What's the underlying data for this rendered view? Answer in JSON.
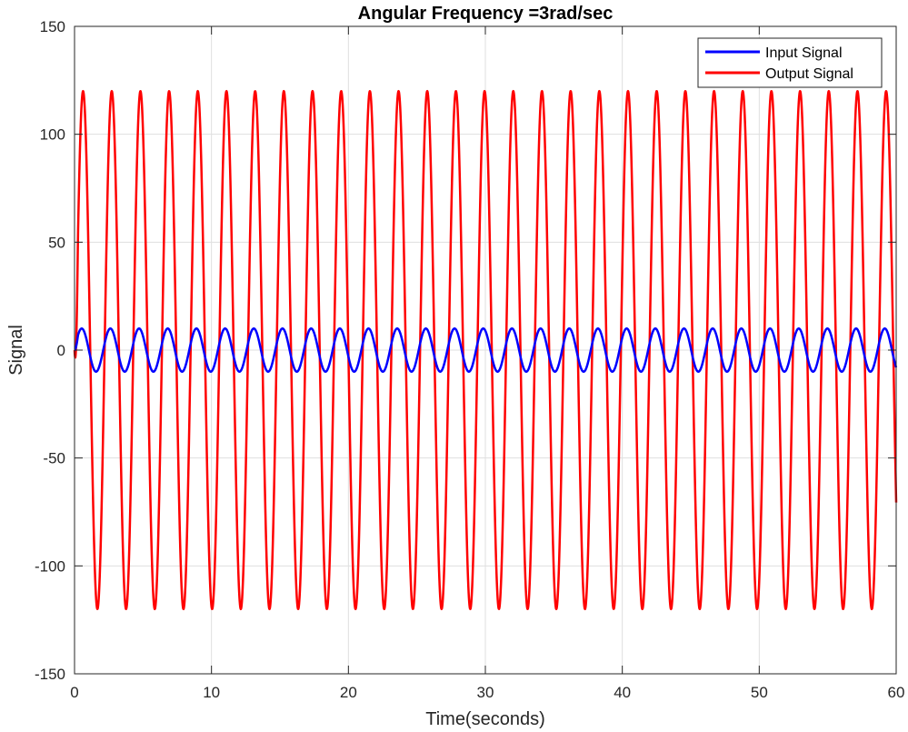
{
  "chart_data": {
    "type": "line",
    "title": "Angular Frequency =3rad/sec",
    "xlabel": "Time(seconds)",
    "ylabel": "Signal",
    "xlim": [
      0,
      60
    ],
    "ylim": [
      -150,
      150
    ],
    "xticks": [
      0,
      10,
      20,
      30,
      40,
      50,
      60
    ],
    "yticks": [
      -150,
      -100,
      -50,
      0,
      50,
      100,
      150
    ],
    "xtick_labels": [
      "0",
      "10",
      "20",
      "30",
      "40",
      "50",
      "60"
    ],
    "ytick_labels": [
      "-150",
      "-100",
      "-50",
      "0",
      "50",
      "100",
      "150"
    ],
    "grid": true,
    "legend_position": "top-right",
    "omega": 3,
    "series": [
      {
        "name": "Input Signal",
        "color": "#0000ff",
        "amplitude": 10,
        "phase": 0
      },
      {
        "name": "Output Signal",
        "color": "#ff0000",
        "amplitude": 120,
        "phase": 0.3
      }
    ]
  }
}
